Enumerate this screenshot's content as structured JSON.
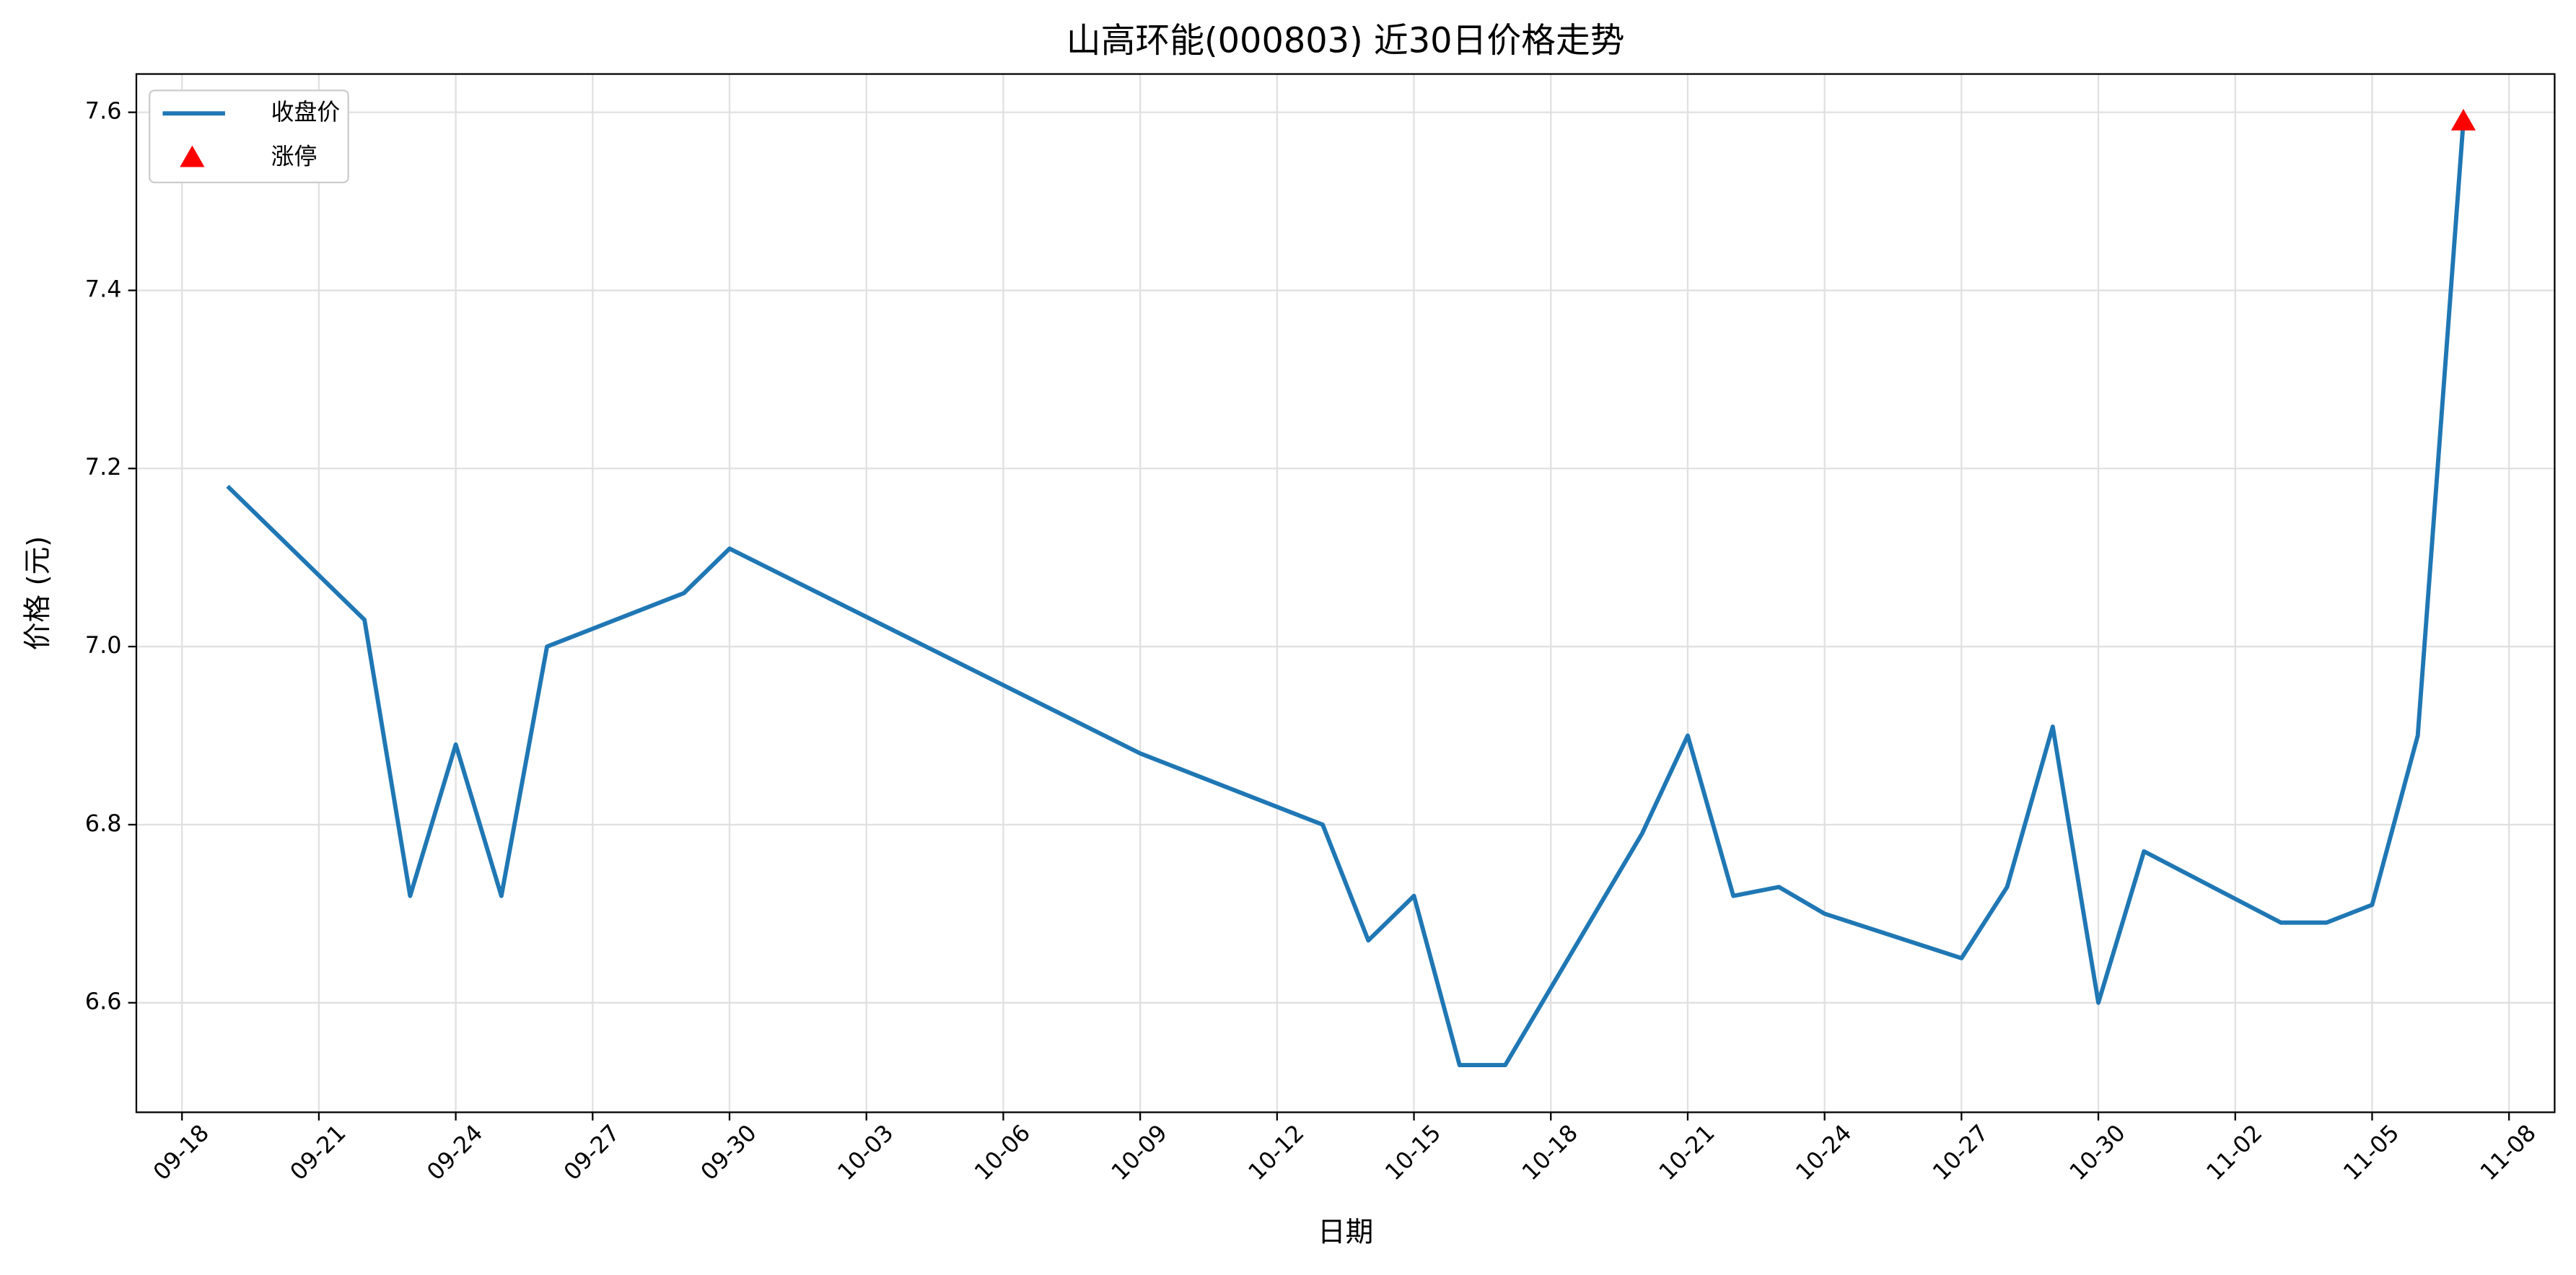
{
  "chart_data": {
    "type": "line",
    "title": "山高环能(000803) 近30日价格走势",
    "xlabel": "日期",
    "ylabel": "价格 (元)",
    "x": [
      "09-19",
      "09-22",
      "09-23",
      "09-24",
      "09-25",
      "09-26",
      "09-29",
      "09-30",
      "10-09",
      "10-13",
      "10-14",
      "10-15",
      "10-16",
      "10-17",
      "10-20",
      "10-21",
      "10-22",
      "10-23",
      "10-24",
      "10-27",
      "10-28",
      "10-29",
      "10-30",
      "10-31",
      "11-03",
      "11-04",
      "11-05",
      "11-06",
      "11-07"
    ],
    "series": [
      {
        "name": "收盘价",
        "color": "#1f77b4",
        "values": [
          7.18,
          7.03,
          6.72,
          6.89,
          6.72,
          7.0,
          7.06,
          7.11,
          6.88,
          6.8,
          6.67,
          6.72,
          6.53,
          6.53,
          6.79,
          6.9,
          6.72,
          6.73,
          6.7,
          6.65,
          6.73,
          6.91,
          6.6,
          6.77,
          6.69,
          6.69,
          6.71,
          6.9,
          7.59
        ]
      }
    ],
    "limit_up": {
      "name": "涨停",
      "color": "#ff0000",
      "x": [
        "11-07"
      ],
      "values": [
        7.59
      ]
    },
    "xlim": [
      "09-17",
      "11-09"
    ],
    "xticks": [
      "09-18",
      "09-21",
      "09-24",
      "09-27",
      "09-30",
      "10-03",
      "10-06",
      "10-09",
      "10-12",
      "10-15",
      "10-18",
      "10-21",
      "10-24",
      "10-27",
      "10-30",
      "11-02",
      "11-05",
      "11-08"
    ],
    "ylim": [
      6.477,
      7.643
    ],
    "yticks": [
      6.6,
      6.8,
      {
        "value": 7,
        "label": "7.0"
      },
      7.2,
      7.4,
      7.6
    ],
    "grid": true,
    "legend": "upper left"
  }
}
